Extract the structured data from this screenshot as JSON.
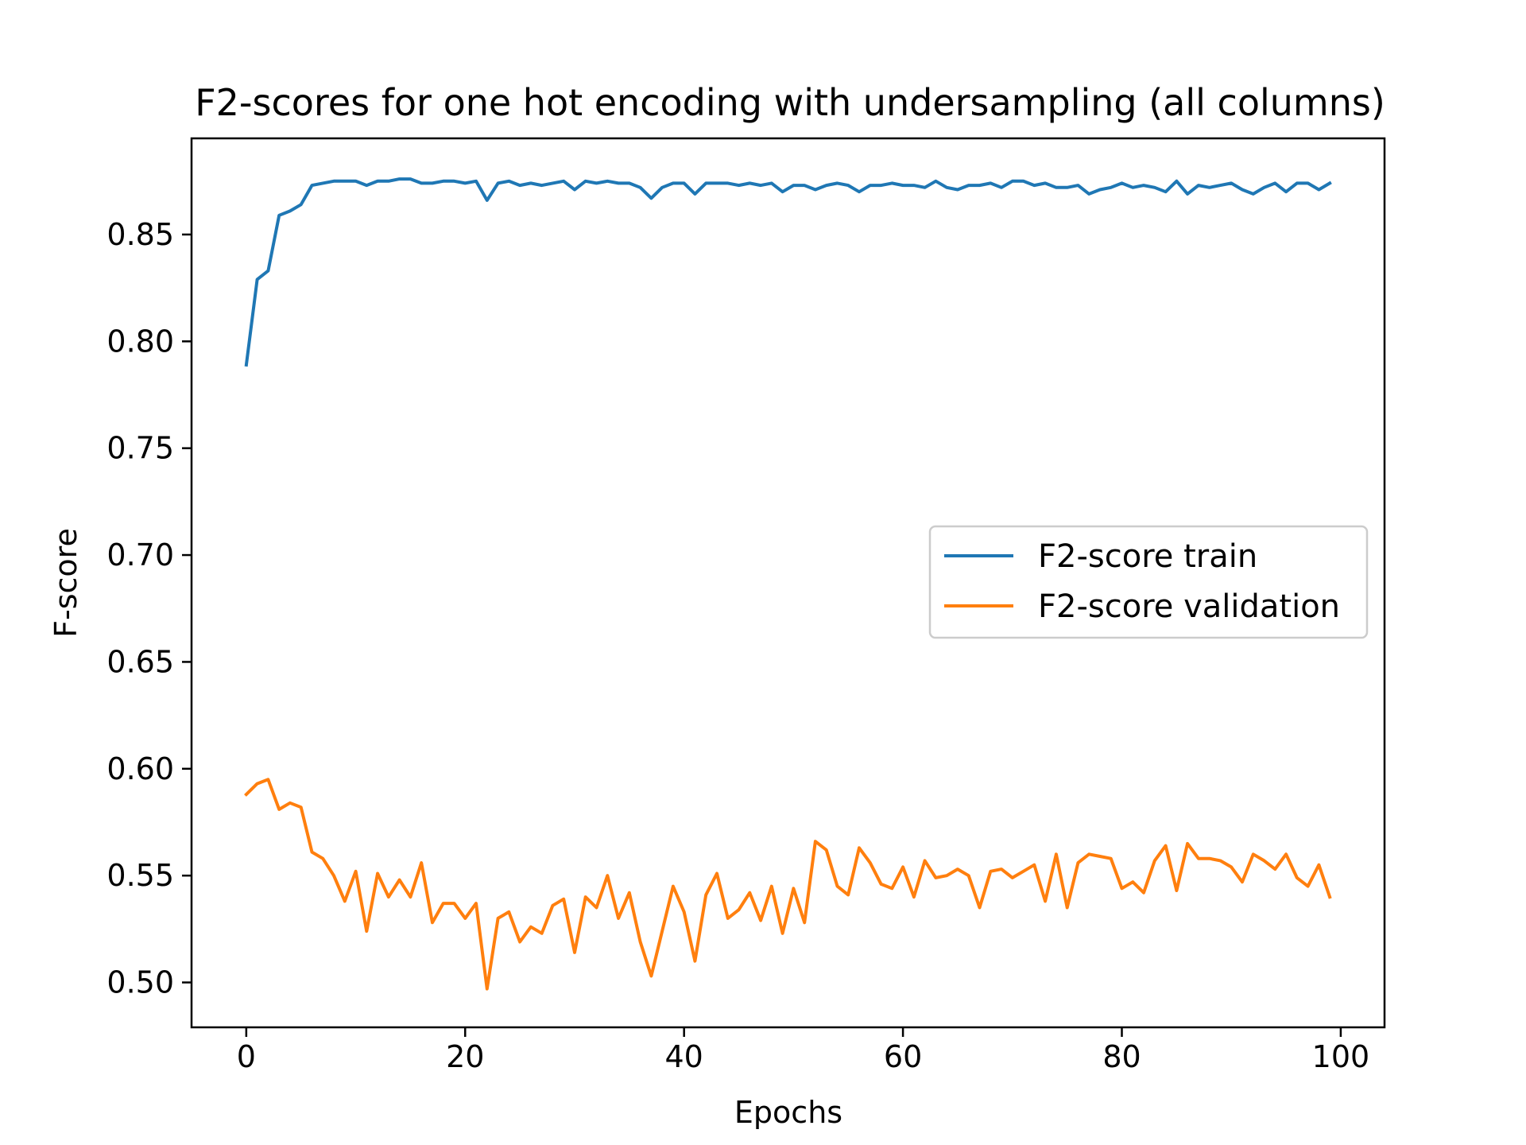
{
  "chart_data": {
    "type": "line",
    "title": "F2-scores for one hot encoding with undersampling (all columns)",
    "xlabel": "Epochs",
    "ylabel": "F-score",
    "xlim": [
      -5,
      104
    ],
    "ylim": [
      0.479,
      0.895
    ],
    "xticks": [
      0,
      20,
      40,
      60,
      80,
      100
    ],
    "yticks": [
      0.5,
      0.55,
      0.6,
      0.65,
      0.7,
      0.75,
      0.8,
      0.85
    ],
    "xtick_labels": [
      "0",
      "20",
      "40",
      "60",
      "80",
      "100"
    ],
    "ytick_labels": [
      "0.50",
      "0.55",
      "0.60",
      "0.65",
      "0.70",
      "0.75",
      "0.80",
      "0.85"
    ],
    "legend_position": "center-right",
    "grid": false,
    "series": [
      {
        "name": "F2-score train",
        "color": "#1f77b4",
        "x": [
          0,
          1,
          2,
          3,
          4,
          5,
          6,
          7,
          8,
          9,
          10,
          11,
          12,
          13,
          14,
          15,
          16,
          17,
          18,
          19,
          20,
          21,
          22,
          23,
          24,
          25,
          26,
          27,
          28,
          29,
          30,
          31,
          32,
          33,
          34,
          35,
          36,
          37,
          38,
          39,
          40,
          41,
          42,
          43,
          44,
          45,
          46,
          47,
          48,
          49,
          50,
          51,
          52,
          53,
          54,
          55,
          56,
          57,
          58,
          59,
          60,
          61,
          62,
          63,
          64,
          65,
          66,
          67,
          68,
          69,
          70,
          71,
          72,
          73,
          74,
          75,
          76,
          77,
          78,
          79,
          80,
          81,
          82,
          83,
          84,
          85,
          86,
          87,
          88,
          89,
          90,
          91,
          92,
          93,
          94,
          95,
          96,
          97,
          98,
          99
        ],
        "values": [
          0.789,
          0.829,
          0.833,
          0.859,
          0.861,
          0.864,
          0.873,
          0.874,
          0.875,
          0.875,
          0.875,
          0.873,
          0.875,
          0.875,
          0.876,
          0.876,
          0.874,
          0.874,
          0.875,
          0.875,
          0.874,
          0.875,
          0.866,
          0.874,
          0.875,
          0.873,
          0.874,
          0.873,
          0.874,
          0.875,
          0.871,
          0.875,
          0.874,
          0.875,
          0.874,
          0.874,
          0.872,
          0.867,
          0.872,
          0.874,
          0.874,
          0.869,
          0.874,
          0.874,
          0.874,
          0.873,
          0.874,
          0.873,
          0.874,
          0.87,
          0.873,
          0.873,
          0.871,
          0.873,
          0.874,
          0.873,
          0.87,
          0.873,
          0.873,
          0.874,
          0.873,
          0.873,
          0.872,
          0.875,
          0.872,
          0.871,
          0.873,
          0.873,
          0.874,
          0.872,
          0.875,
          0.875,
          0.873,
          0.874,
          0.872,
          0.872,
          0.873,
          0.869,
          0.871,
          0.872,
          0.874,
          0.872,
          0.873,
          0.872,
          0.87,
          0.875,
          0.869,
          0.873,
          0.872,
          0.873,
          0.874,
          0.871,
          0.869,
          0.872,
          0.874,
          0.87,
          0.874,
          0.874,
          0.871,
          0.874
        ]
      },
      {
        "name": "F2-score validation",
        "color": "#ff7f0e",
        "x": [
          0,
          1,
          2,
          3,
          4,
          5,
          6,
          7,
          8,
          9,
          10,
          11,
          12,
          13,
          14,
          15,
          16,
          17,
          18,
          19,
          20,
          21,
          22,
          23,
          24,
          25,
          26,
          27,
          28,
          29,
          30,
          31,
          32,
          33,
          34,
          35,
          36,
          37,
          38,
          39,
          40,
          41,
          42,
          43,
          44,
          45,
          46,
          47,
          48,
          49,
          50,
          51,
          52,
          53,
          54,
          55,
          56,
          57,
          58,
          59,
          60,
          61,
          62,
          63,
          64,
          65,
          66,
          67,
          68,
          69,
          70,
          71,
          72,
          73,
          74,
          75,
          76,
          77,
          78,
          79,
          80,
          81,
          82,
          83,
          84,
          85,
          86,
          87,
          88,
          89,
          90,
          91,
          92,
          93,
          94,
          95,
          96,
          97,
          98,
          99
        ],
        "values": [
          0.588,
          0.593,
          0.595,
          0.581,
          0.584,
          0.582,
          0.561,
          0.558,
          0.55,
          0.538,
          0.552,
          0.524,
          0.551,
          0.54,
          0.548,
          0.54,
          0.556,
          0.528,
          0.537,
          0.537,
          0.53,
          0.537,
          0.497,
          0.53,
          0.533,
          0.519,
          0.526,
          0.523,
          0.536,
          0.539,
          0.514,
          0.54,
          0.535,
          0.55,
          0.53,
          0.542,
          0.519,
          0.503,
          0.524,
          0.545,
          0.533,
          0.51,
          0.541,
          0.551,
          0.53,
          0.534,
          0.542,
          0.529,
          0.545,
          0.523,
          0.544,
          0.528,
          0.566,
          0.562,
          0.545,
          0.541,
          0.563,
          0.556,
          0.546,
          0.544,
          0.554,
          0.54,
          0.557,
          0.549,
          0.55,
          0.553,
          0.55,
          0.535,
          0.552,
          0.553,
          0.549,
          0.552,
          0.555,
          0.538,
          0.56,
          0.535,
          0.556,
          0.56,
          0.559,
          0.558,
          0.544,
          0.547,
          0.542,
          0.557,
          0.564,
          0.543,
          0.565,
          0.558,
          0.558,
          0.557,
          0.554,
          0.547,
          0.56,
          0.557,
          0.553,
          0.56,
          0.549,
          0.545,
          0.555,
          0.54
        ]
      }
    ]
  }
}
